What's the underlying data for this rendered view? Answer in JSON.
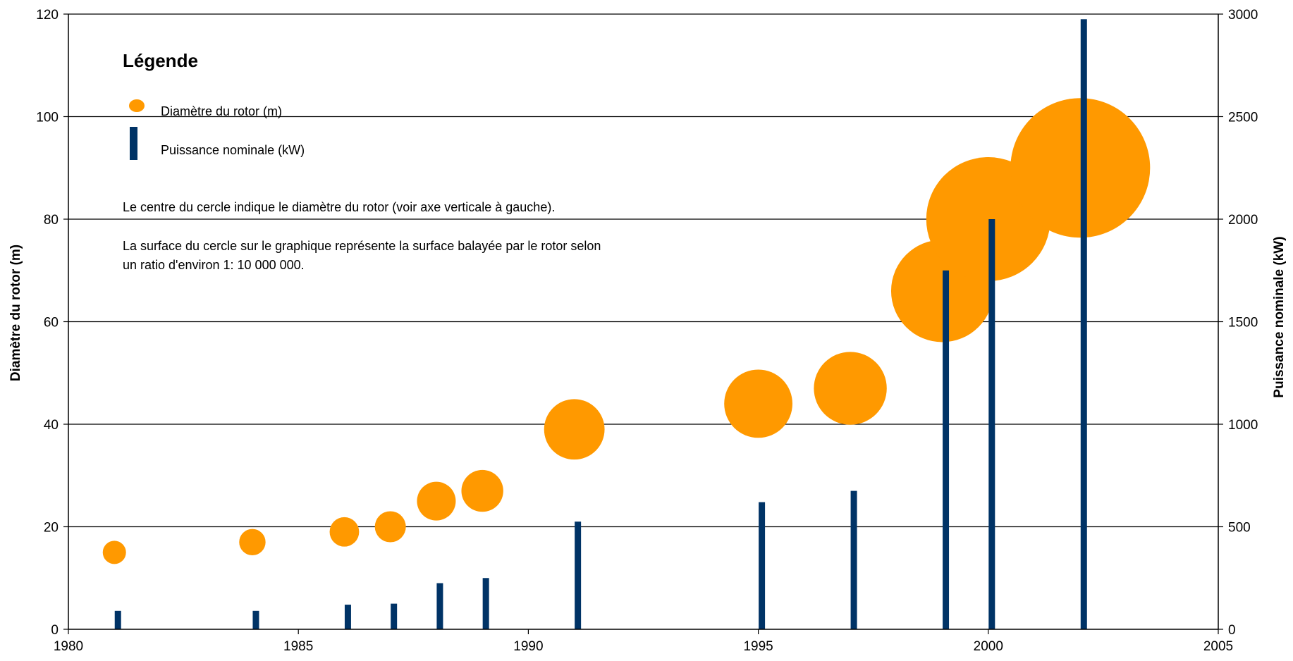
{
  "chart_data": {
    "type": "bubble-bar",
    "xlim": [
      1980,
      2005
    ],
    "x_ticks": [
      1980,
      1985,
      1990,
      1995,
      2000,
      2005
    ],
    "y_left": {
      "label": "Diamètre du rotor (m)",
      "lim": [
        0,
        120
      ],
      "ticks": [
        0,
        20,
        40,
        60,
        80,
        100,
        120
      ]
    },
    "y_right": {
      "label": "Puissance nominale (kW)",
      "lim": [
        0,
        3000
      ],
      "ticks": [
        0,
        500,
        1000,
        1500,
        2000,
        2500,
        3000
      ]
    },
    "grid": true,
    "series": [
      {
        "name": "Diamètre du rotor (m)",
        "type": "bubble",
        "axis": "left",
        "color": "#FF9900",
        "points": [
          {
            "x": 1981,
            "y": 15
          },
          {
            "x": 1984,
            "y": 17
          },
          {
            "x": 1986,
            "y": 19
          },
          {
            "x": 1987,
            "y": 20
          },
          {
            "x": 1988,
            "y": 25
          },
          {
            "x": 1989,
            "y": 27
          },
          {
            "x": 1991,
            "y": 39
          },
          {
            "x": 1995,
            "y": 44
          },
          {
            "x": 1997,
            "y": 47
          },
          {
            "x": 1999,
            "y": 66
          },
          {
            "x": 2000,
            "y": 80
          },
          {
            "x": 2002,
            "y": 90
          }
        ]
      },
      {
        "name": "Puissance nominale (kW)",
        "type": "bar",
        "axis": "right",
        "color": "#003366",
        "points": [
          {
            "x": 1981,
            "y": 90
          },
          {
            "x": 1984,
            "y": 90
          },
          {
            "x": 1986,
            "y": 120
          },
          {
            "x": 1987,
            "y": 125
          },
          {
            "x": 1988,
            "y": 225
          },
          {
            "x": 1989,
            "y": 250
          },
          {
            "x": 1991,
            "y": 525
          },
          {
            "x": 1995,
            "y": 620
          },
          {
            "x": 1997,
            "y": 675
          },
          {
            "x": 1999,
            "y": 1750
          },
          {
            "x": 2000,
            "y": 2000
          },
          {
            "x": 2002,
            "y": 2975
          }
        ]
      }
    ],
    "legend": {
      "title": "Légende",
      "items": [
        "Diamètre du rotor (m)",
        "Puissance nominale (kW)"
      ],
      "note1": "Le centre du cercle indique le diamètre du rotor (voir axe verticale à gauche).",
      "note2_line1": "La surface du cercle sur le graphique représente la surface balayée par le rotor selon",
      "note2_line2": "un ratio d'environ 1: 10 000 000."
    }
  }
}
